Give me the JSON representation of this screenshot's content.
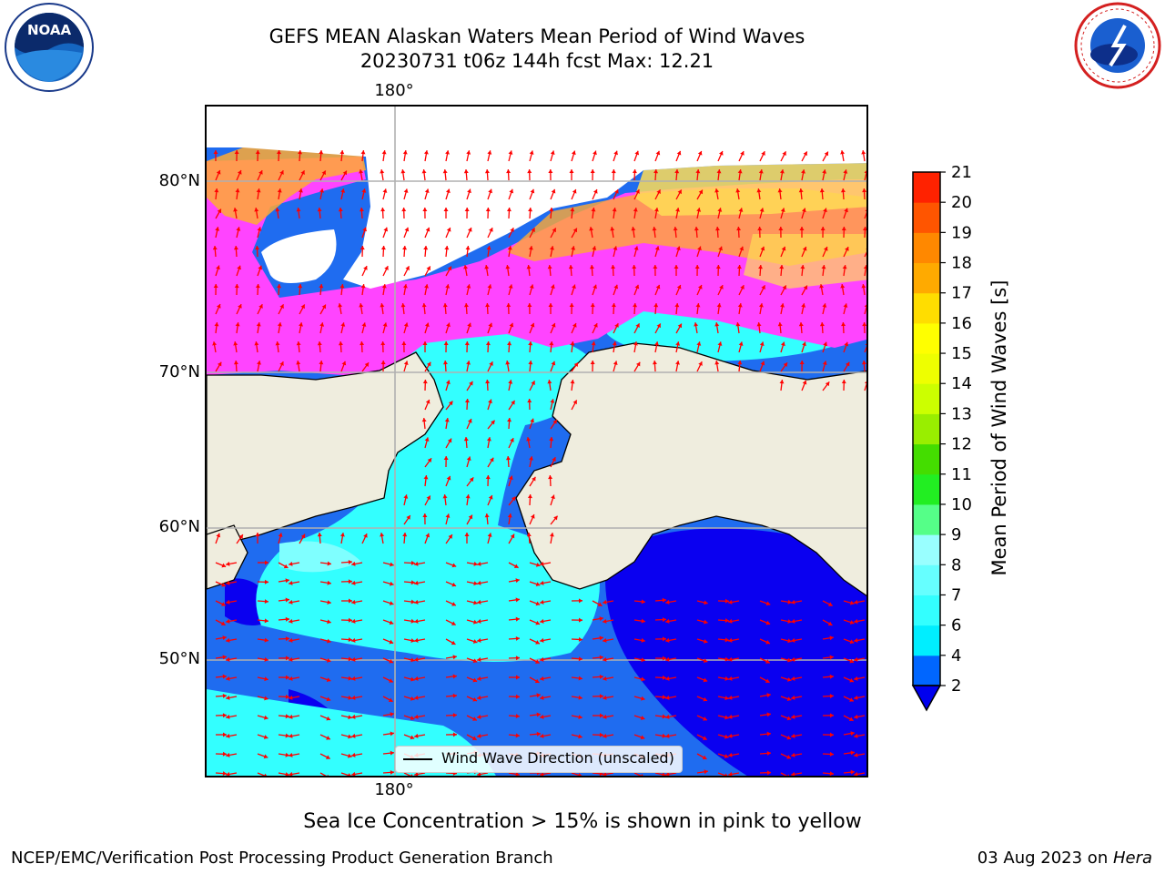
{
  "title_line1": "GEFS MEAN Alaskan Waters Mean Period of Wind Waves",
  "title_line2": "20230731 t06z 144h fcst   Max: 12.21",
  "map": {
    "lon_label_top": "180°",
    "lon_label_bottom": "180°",
    "lat_labels": [
      "80°N",
      "70°N",
      "60°N",
      "50°N"
    ],
    "legend_label": "Wind Wave Direction (unscaled)",
    "colors": {
      "ocean_deep": "#0a00f0",
      "ocean_blue": "#1f6cf0",
      "ocean_cyan": "#33ffff",
      "ocean_lightcyan": "#7fffff",
      "land": "#efedde",
      "ice_pink": "#ff44ff",
      "ice_orange": "#ffaa33",
      "ice_yellow": "#ffdd55",
      "arrow": "#ff0000"
    }
  },
  "colorbar": {
    "label": "Mean Period of Wind Waves [s]",
    "ticks": [
      "2",
      "4",
      "6",
      "7",
      "8",
      "9",
      "10",
      "11",
      "12",
      "13",
      "14",
      "15",
      "16",
      "17",
      "18",
      "19",
      "20",
      "21"
    ],
    "colors": [
      "#0066ff",
      "#00eeff",
      "#33ffff",
      "#66ffff",
      "#99ffff",
      "#55ff88",
      "#22ee22",
      "#44dd00",
      "#99ee00",
      "#ccff00",
      "#eeff00",
      "#ffff00",
      "#ffdd00",
      "#ffaa00",
      "#ff8800",
      "#ff5500",
      "#ff2200"
    ],
    "underflow_color": "#0000ee"
  },
  "logos": {
    "left": {
      "name": "noaa-logo",
      "text": "NOAA"
    },
    "right": {
      "name": "nws-logo",
      "text": "NATIONAL WEATHER SERVICE"
    }
  },
  "caption": "Sea Ice Concentration > 15% is shown in pink to yellow",
  "footer_left": "NCEP/EMC/Verification Post Processing Product Generation Branch",
  "footer_right_date": "03 Aug 2023 on ",
  "footer_right_host": "Hera"
}
